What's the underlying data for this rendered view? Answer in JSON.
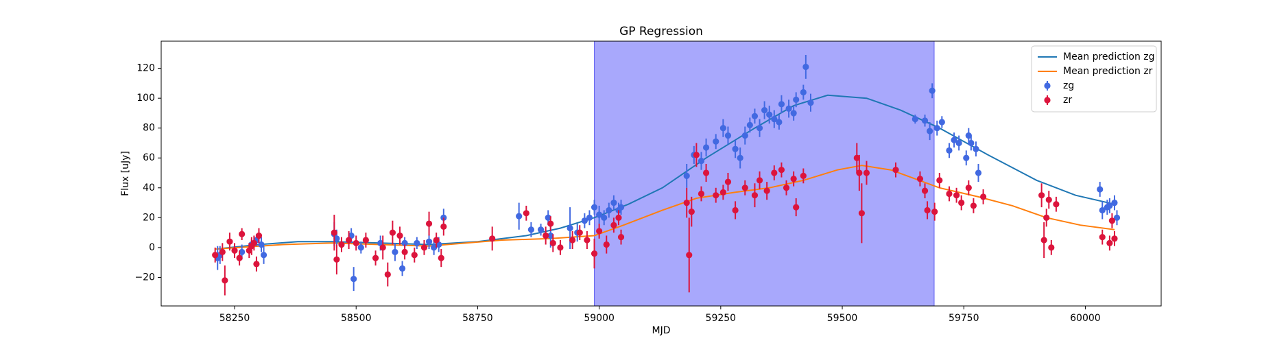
{
  "chart_data": {
    "type": "errorbar",
    "title": "GP Regression",
    "x_label": "MJD",
    "y_label": "Flux [uJy]",
    "xlim": [
      58099,
      60156
    ],
    "ylim": [
      -39.1,
      138.2
    ],
    "xticks": [
      58250,
      58500,
      58750,
      59000,
      59250,
      59500,
      59750,
      60000
    ],
    "yticks": [
      {
        "value": -20,
        "label": "−20"
      },
      0,
      20,
      40,
      60,
      80,
      100,
      120
    ],
    "legend": "upper right",
    "span": {
      "x": [
        58990,
        59689
      ],
      "color": "#a8a8fc"
    },
    "series": [
      {
        "name": "Mean prediction zg",
        "mode": "line",
        "color": "#1f77b4",
        "x": [
          58210,
          58300,
          58380,
          58450,
          58550,
          58650,
          58750,
          58850,
          58920,
          58990,
          59060,
          59130,
          59220,
          59320,
          59400,
          59470,
          59550,
          59620,
          59700,
          59800,
          59900,
          59980,
          60060
        ],
        "values": [
          -1,
          2,
          4,
          4,
          3,
          2,
          4,
          8,
          13,
          20,
          29,
          40,
          60,
          80,
          95,
          102,
          100,
          92,
          80,
          62,
          45,
          35,
          29
        ]
      },
      {
        "name": "Mean prediction zr",
        "mode": "line",
        "color": "#ff7f0e",
        "x": [
          58210,
          58350,
          58450,
          58550,
          58650,
          58800,
          58900,
          58990,
          59050,
          59130,
          59200,
          59280,
          59350,
          59420,
          59490,
          59540,
          59600,
          59650,
          59700,
          59780,
          59850,
          59920,
          59990,
          60060
        ],
        "values": [
          -1,
          2,
          3,
          2,
          1,
          5,
          6,
          8,
          15,
          25,
          33,
          37,
          40,
          45,
          52,
          55,
          52,
          46,
          40,
          34,
          28,
          20,
          15,
          12
        ]
      },
      {
        "name": "zg",
        "mode": "markers",
        "color": "#4169e1",
        "x": [
          58215,
          58220,
          58265,
          58285,
          58295,
          58305,
          58310,
          58455,
          58460,
          58490,
          58495,
          58510,
          58550,
          58580,
          58595,
          58600,
          58625,
          58650,
          58660,
          58670,
          58680,
          58835,
          58860,
          58880,
          58895,
          58900,
          58940,
          58955,
          58970,
          58980,
          58990,
          59000,
          59010,
          59020,
          59030,
          59040,
          59045,
          59180,
          59195,
          59210,
          59220,
          59240,
          59255,
          59265,
          59280,
          59290,
          59300,
          59310,
          59320,
          59330,
          59340,
          59350,
          59360,
          59370,
          59375,
          59390,
          59400,
          59405,
          59420,
          59425,
          59435,
          59650,
          59670,
          59680,
          59685,
          59695,
          59705,
          59720,
          59730,
          59740,
          59755,
          59760,
          59765,
          59775,
          59780,
          60030,
          60035,
          60045,
          60050,
          60060,
          60065
        ],
        "values": [
          -7,
          -5,
          -3,
          2,
          5,
          2,
          -5,
          9,
          6,
          8,
          -21,
          0,
          3,
          -3,
          -14,
          3,
          3,
          4,
          0,
          2,
          20,
          21,
          12,
          12,
          20,
          8,
          13,
          10,
          18,
          20,
          27,
          22,
          20,
          25,
          30,
          25,
          27,
          48,
          62,
          58,
          67,
          71,
          80,
          75,
          66,
          60,
          75,
          82,
          88,
          80,
          92,
          89,
          86,
          84,
          96,
          93,
          90,
          99,
          104,
          121,
          97,
          86,
          85,
          78,
          105,
          80,
          84,
          65,
          72,
          70,
          60,
          75,
          70,
          66,
          50,
          39,
          25,
          27,
          28,
          30,
          20
        ],
        "errors": [
          8,
          6,
          5,
          4,
          4,
          5,
          6,
          8,
          6,
          5,
          8,
          4,
          5,
          6,
          5,
          4,
          4,
          5,
          5,
          5,
          6,
          9,
          5,
          4,
          5,
          8,
          14,
          6,
          5,
          5,
          5,
          6,
          5,
          5,
          5,
          5,
          5,
          8,
          6,
          6,
          6,
          5,
          6,
          6,
          6,
          7,
          6,
          5,
          5,
          6,
          6,
          6,
          6,
          5,
          6,
          6,
          5,
          5,
          5,
          8,
          6,
          3,
          4,
          6,
          5,
          5,
          4,
          5,
          5,
          5,
          5,
          5,
          5,
          5,
          6,
          5,
          6,
          5,
          5,
          5,
          5
        ]
      },
      {
        "name": "zr",
        "mode": "markers",
        "color": "#dc143c",
        "x": [
          58210,
          58225,
          58230,
          58240,
          58250,
          58260,
          58265,
          58280,
          58285,
          58290,
          58295,
          58300,
          58455,
          58460,
          58470,
          58485,
          58500,
          58520,
          58540,
          58555,
          58565,
          58575,
          58590,
          58600,
          58620,
          58640,
          58650,
          58665,
          58675,
          58680,
          58780,
          58850,
          58890,
          58900,
          58905,
          58920,
          58945,
          58960,
          58975,
          58990,
          59000,
          59015,
          59030,
          59040,
          59045,
          59180,
          59185,
          59190,
          59200,
          59210,
          59220,
          59240,
          59255,
          59265,
          59280,
          59300,
          59320,
          59330,
          59345,
          59360,
          59375,
          59385,
          59400,
          59405,
          59420,
          59530,
          59535,
          59540,
          59550,
          59610,
          59660,
          59670,
          59675,
          59690,
          59700,
          59720,
          59735,
          59745,
          59760,
          59770,
          59790,
          59910,
          59915,
          59920,
          59925,
          59930,
          59940,
          60035,
          60050,
          60055,
          60060
        ],
        "values": [
          -5,
          -3,
          -22,
          4,
          -2,
          -7,
          9,
          -2,
          1,
          3,
          -11,
          8,
          10,
          -8,
          2,
          5,
          3,
          5,
          -7,
          0,
          -18,
          10,
          8,
          -3,
          -5,
          0,
          16,
          5,
          -7,
          14,
          6,
          23,
          8,
          16,
          3,
          0,
          5,
          10,
          5,
          -4,
          11,
          2,
          15,
          20,
          7,
          30,
          -5,
          24,
          62,
          36,
          50,
          35,
          37,
          44,
          25,
          40,
          35,
          45,
          38,
          50,
          52,
          40,
          46,
          27,
          48,
          60,
          50,
          23,
          50,
          52,
          46,
          38,
          25,
          24,
          45,
          36,
          35,
          30,
          40,
          28,
          34,
          35,
          5,
          20,
          32,
          0,
          29,
          7,
          3,
          18,
          6
        ],
        "errors": [
          5,
          6,
          10,
          6,
          5,
          5,
          4,
          5,
          6,
          5,
          5,
          5,
          12,
          10,
          5,
          6,
          5,
          5,
          5,
          8,
          8,
          8,
          6,
          5,
          5,
          5,
          8,
          5,
          6,
          6,
          8,
          5,
          6,
          5,
          6,
          5,
          6,
          5,
          6,
          10,
          5,
          6,
          5,
          5,
          5,
          10,
          25,
          10,
          8,
          5,
          6,
          5,
          5,
          6,
          6,
          5,
          8,
          6,
          6,
          5,
          5,
          5,
          5,
          6,
          5,
          10,
          12,
          20,
          8,
          5,
          5,
          5,
          6,
          6,
          5,
          5,
          5,
          5,
          5,
          5,
          5,
          8,
          12,
          6,
          6,
          5,
          5,
          5,
          5,
          5,
          5
        ]
      }
    ]
  }
}
